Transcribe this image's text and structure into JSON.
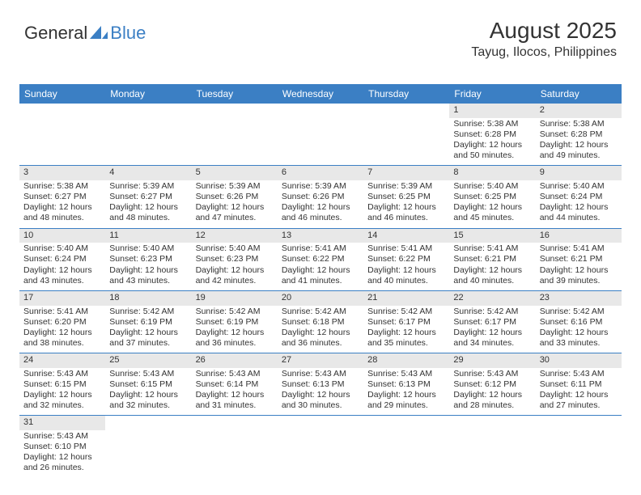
{
  "logo": {
    "text1": "General",
    "text2": "Blue"
  },
  "header": {
    "month_title": "August 2025",
    "location": "Tayug, Ilocos, Philippines"
  },
  "colors": {
    "header_bg": "#3b7fc4",
    "daynum_bg": "#e8e8e8",
    "text": "#333333",
    "divider": "#3b7fc4"
  },
  "day_names": [
    "Sunday",
    "Monday",
    "Tuesday",
    "Wednesday",
    "Thursday",
    "Friday",
    "Saturday"
  ],
  "days": {
    "1": {
      "sunrise": "5:38 AM",
      "sunset": "6:28 PM",
      "dh": "12",
      "dm": "50"
    },
    "2": {
      "sunrise": "5:38 AM",
      "sunset": "6:28 PM",
      "dh": "12",
      "dm": "49"
    },
    "3": {
      "sunrise": "5:38 AM",
      "sunset": "6:27 PM",
      "dh": "12",
      "dm": "48"
    },
    "4": {
      "sunrise": "5:39 AM",
      "sunset": "6:27 PM",
      "dh": "12",
      "dm": "48"
    },
    "5": {
      "sunrise": "5:39 AM",
      "sunset": "6:26 PM",
      "dh": "12",
      "dm": "47"
    },
    "6": {
      "sunrise": "5:39 AM",
      "sunset": "6:26 PM",
      "dh": "12",
      "dm": "46"
    },
    "7": {
      "sunrise": "5:39 AM",
      "sunset": "6:25 PM",
      "dh": "12",
      "dm": "46"
    },
    "8": {
      "sunrise": "5:40 AM",
      "sunset": "6:25 PM",
      "dh": "12",
      "dm": "45"
    },
    "9": {
      "sunrise": "5:40 AM",
      "sunset": "6:24 PM",
      "dh": "12",
      "dm": "44"
    },
    "10": {
      "sunrise": "5:40 AM",
      "sunset": "6:24 PM",
      "dh": "12",
      "dm": "43"
    },
    "11": {
      "sunrise": "5:40 AM",
      "sunset": "6:23 PM",
      "dh": "12",
      "dm": "43"
    },
    "12": {
      "sunrise": "5:40 AM",
      "sunset": "6:23 PM",
      "dh": "12",
      "dm": "42"
    },
    "13": {
      "sunrise": "5:41 AM",
      "sunset": "6:22 PM",
      "dh": "12",
      "dm": "41"
    },
    "14": {
      "sunrise": "5:41 AM",
      "sunset": "6:22 PM",
      "dh": "12",
      "dm": "40"
    },
    "15": {
      "sunrise": "5:41 AM",
      "sunset": "6:21 PM",
      "dh": "12",
      "dm": "40"
    },
    "16": {
      "sunrise": "5:41 AM",
      "sunset": "6:21 PM",
      "dh": "12",
      "dm": "39"
    },
    "17": {
      "sunrise": "5:41 AM",
      "sunset": "6:20 PM",
      "dh": "12",
      "dm": "38"
    },
    "18": {
      "sunrise": "5:42 AM",
      "sunset": "6:19 PM",
      "dh": "12",
      "dm": "37"
    },
    "19": {
      "sunrise": "5:42 AM",
      "sunset": "6:19 PM",
      "dh": "12",
      "dm": "36"
    },
    "20": {
      "sunrise": "5:42 AM",
      "sunset": "6:18 PM",
      "dh": "12",
      "dm": "36"
    },
    "21": {
      "sunrise": "5:42 AM",
      "sunset": "6:17 PM",
      "dh": "12",
      "dm": "35"
    },
    "22": {
      "sunrise": "5:42 AM",
      "sunset": "6:17 PM",
      "dh": "12",
      "dm": "34"
    },
    "23": {
      "sunrise": "5:42 AM",
      "sunset": "6:16 PM",
      "dh": "12",
      "dm": "33"
    },
    "24": {
      "sunrise": "5:43 AM",
      "sunset": "6:15 PM",
      "dh": "12",
      "dm": "32"
    },
    "25": {
      "sunrise": "5:43 AM",
      "sunset": "6:15 PM",
      "dh": "12",
      "dm": "32"
    },
    "26": {
      "sunrise": "5:43 AM",
      "sunset": "6:14 PM",
      "dh": "12",
      "dm": "31"
    },
    "27": {
      "sunrise": "5:43 AM",
      "sunset": "6:13 PM",
      "dh": "12",
      "dm": "30"
    },
    "28": {
      "sunrise": "5:43 AM",
      "sunset": "6:13 PM",
      "dh": "12",
      "dm": "29"
    },
    "29": {
      "sunrise": "5:43 AM",
      "sunset": "6:12 PM",
      "dh": "12",
      "dm": "28"
    },
    "30": {
      "sunrise": "5:43 AM",
      "sunset": "6:11 PM",
      "dh": "12",
      "dm": "27"
    },
    "31": {
      "sunrise": "5:43 AM",
      "sunset": "6:10 PM",
      "dh": "12",
      "dm": "26"
    }
  },
  "labels": {
    "sunrise_prefix": "Sunrise: ",
    "sunset_prefix": "Sunset: ",
    "daylight_prefix": "Daylight: ",
    "hours_word": " hours",
    "and_word": "and ",
    "minutes_word": " minutes."
  },
  "layout": {
    "weeks": [
      [
        null,
        null,
        null,
        null,
        null,
        "1",
        "2"
      ],
      [
        "3",
        "4",
        "5",
        "6",
        "7",
        "8",
        "9"
      ],
      [
        "10",
        "11",
        "12",
        "13",
        "14",
        "15",
        "16"
      ],
      [
        "17",
        "18",
        "19",
        "20",
        "21",
        "22",
        "23"
      ],
      [
        "24",
        "25",
        "26",
        "27",
        "28",
        "29",
        "30"
      ],
      [
        "31",
        null,
        null,
        null,
        null,
        null,
        null
      ]
    ]
  }
}
